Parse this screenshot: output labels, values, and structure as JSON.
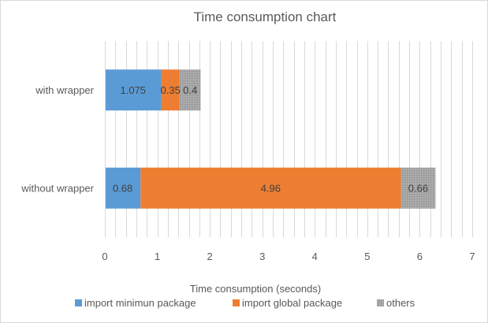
{
  "chart_data": {
    "type": "bar",
    "orientation": "horizontal",
    "stacked": true,
    "title": "Time consumption chart",
    "xlabel": "Time consumption (seconds)",
    "ylabel": "",
    "xlim": [
      0,
      7
    ],
    "x_ticks": [
      "0",
      "1",
      "2",
      "3",
      "4",
      "5",
      "6",
      "7"
    ],
    "grid": "vertical minor gridlines",
    "legend_position": "bottom",
    "categories": [
      "with wrapper",
      "without wrapper"
    ],
    "series": [
      {
        "name": "import minimun package",
        "color": "#5b9bd5",
        "values": [
          1.075,
          0.68
        ],
        "labels": [
          "1.075",
          "0.68"
        ]
      },
      {
        "name": "import global package",
        "color": "#ed7d31",
        "values": [
          0.35,
          4.96
        ],
        "labels": [
          "0.35",
          "4.96"
        ]
      },
      {
        "name": "others",
        "color": "#a5a5a5",
        "values": [
          0.4,
          0.66
        ],
        "labels": [
          "0.4",
          "0.66"
        ]
      }
    ]
  }
}
